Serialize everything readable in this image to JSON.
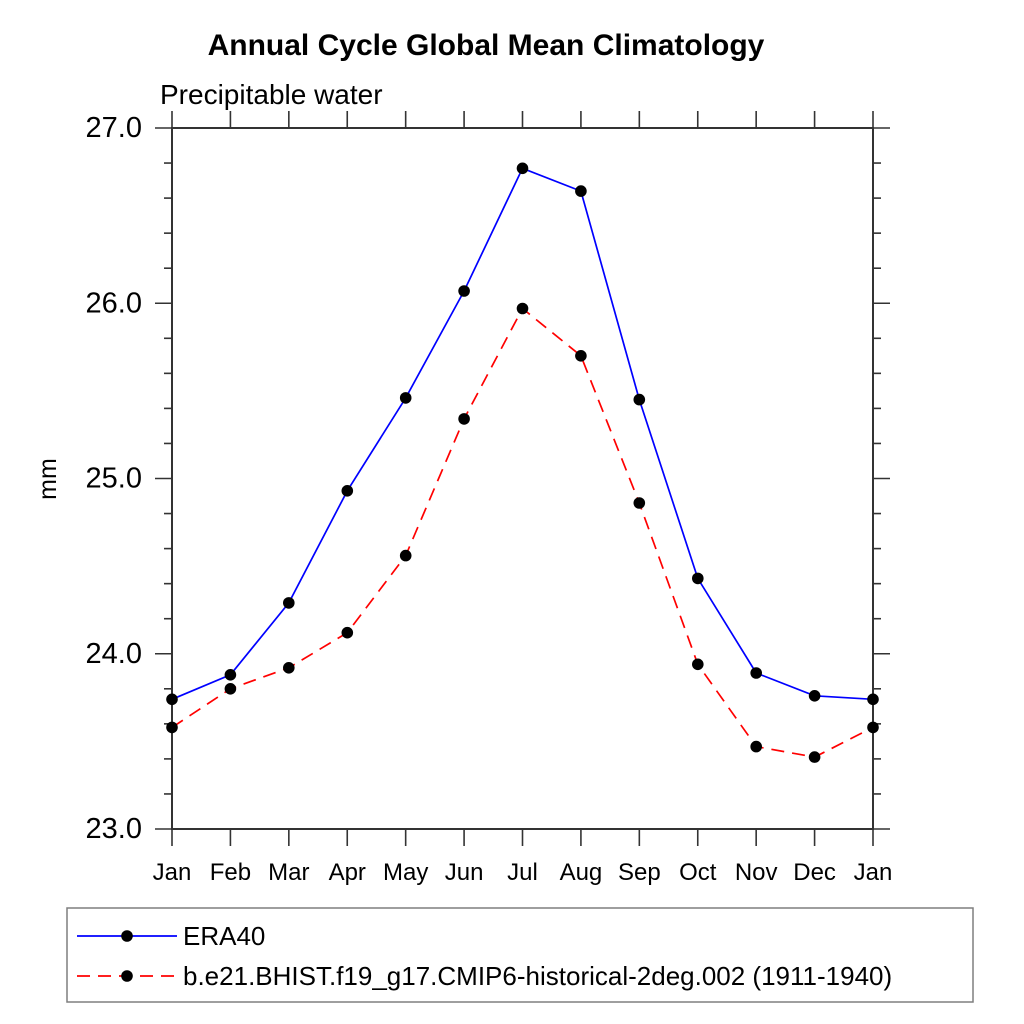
{
  "page": {
    "background": "#ffffff"
  },
  "chart_data": {
    "type": "line",
    "title": "Annual Cycle Global Mean Climatology",
    "subtitle": "Precipitable water",
    "ylabel": "mm",
    "xlabel": "",
    "x_tick_labels": [
      "Jan",
      "Feb",
      "Mar",
      "Apr",
      "May",
      "Jun",
      "Jul",
      "Aug",
      "Sep",
      "Oct",
      "Nov",
      "Dec",
      "Jan"
    ],
    "y_ticks": [
      23.0,
      24.0,
      25.0,
      26.0,
      27.0
    ],
    "y_tick_labels": [
      "23.0",
      "24.0",
      "25.0",
      "26.0",
      "27.0"
    ],
    "ylim": [
      23.0,
      27.0
    ],
    "y_minor_step": 0.2,
    "grid": false,
    "legend_position": "bottom-left-box",
    "marker": "filled-circle",
    "marker_color": "#000000",
    "axis_color": "#333333",
    "series": [
      {
        "name": "ERA40",
        "color": "#0000ff",
        "line_style": "solid",
        "values": [
          23.74,
          23.88,
          24.29,
          24.93,
          25.46,
          26.07,
          26.77,
          26.64,
          25.45,
          24.43,
          23.89,
          23.76,
          23.74
        ]
      },
      {
        "name": "b.e21.BHIST.f19_g17.CMIP6-historical-2deg.002 (1911-1940)",
        "color": "#ff0000",
        "line_style": "dashed",
        "values": [
          23.58,
          23.8,
          23.92,
          24.12,
          24.56,
          25.34,
          25.97,
          25.7,
          24.86,
          23.94,
          23.47,
          23.41,
          23.58
        ]
      }
    ]
  }
}
